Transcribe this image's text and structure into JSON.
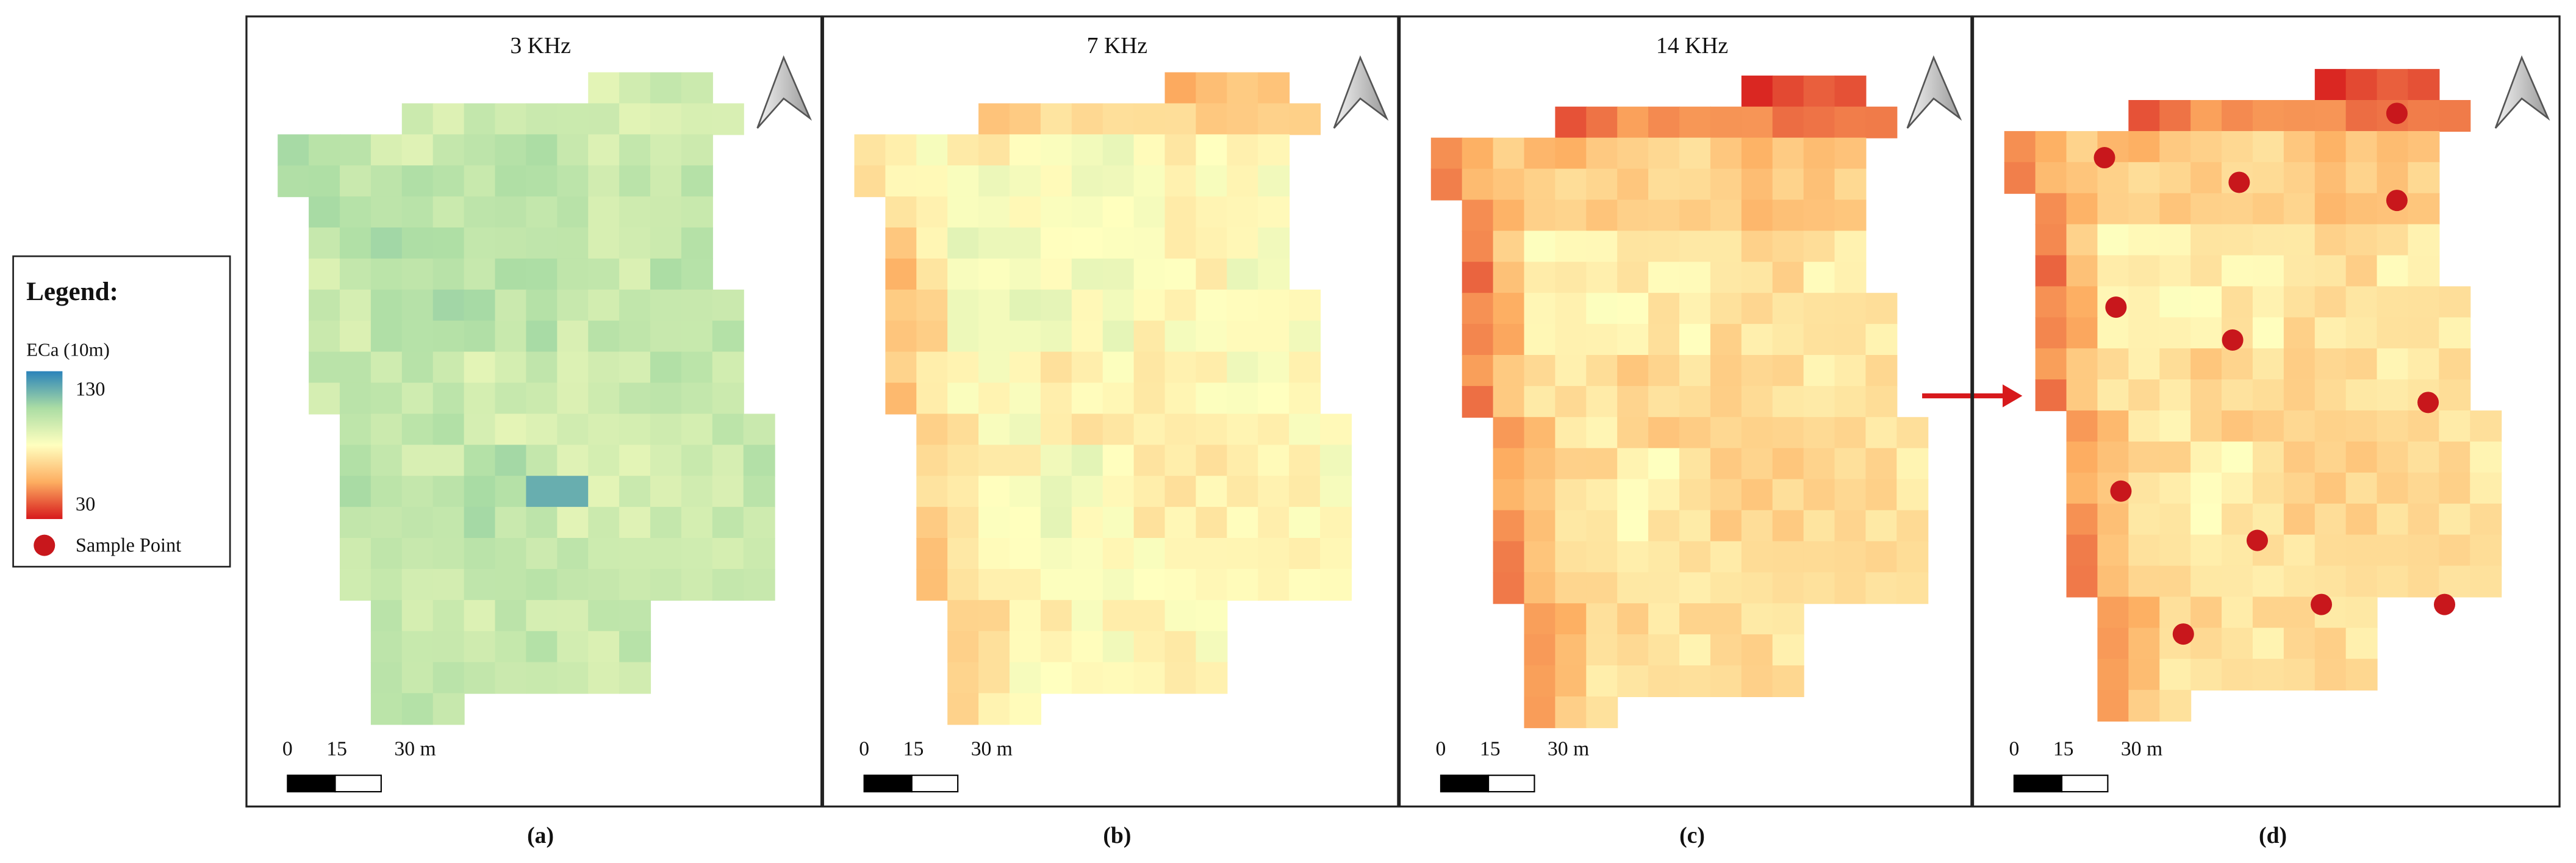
{
  "legend": {
    "title": "Legend:",
    "layer": "ECa (10m)",
    "max": "130",
    "min": "30",
    "sample_point": "Sample Point"
  },
  "panels": [
    {
      "title": "3 KHz",
      "caption": "(a)",
      "scale_labels": [
        "0",
        "15",
        "30 m"
      ]
    },
    {
      "title": "7 KHz",
      "caption": "(b)",
      "scale_labels": [
        "0",
        "15",
        "30 m"
      ]
    },
    {
      "title": "14 KHz",
      "caption": "(c)",
      "scale_labels": [
        "0",
        "15",
        "30 m"
      ]
    },
    {
      "caption": "(d)",
      "scale_labels": [
        "0",
        "15",
        "30 m"
      ]
    }
  ]
}
